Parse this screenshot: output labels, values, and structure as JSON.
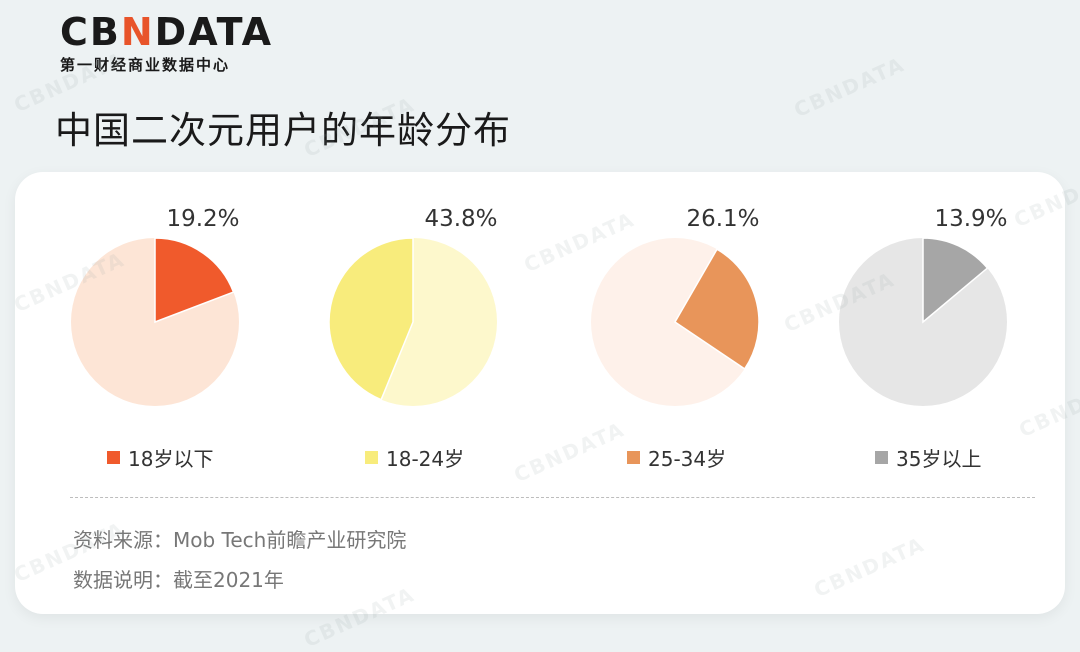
{
  "brand": {
    "logo_left": "CB",
    "logo_accent": "N",
    "logo_right": "DATA",
    "subtitle": "第一财经商业数据中心",
    "accent_color": "#e8542a"
  },
  "watermark_text": "CBNDATA",
  "title": "中国二次元用户的年龄分布",
  "chart_data": {
    "type": "pie",
    "title": "中国二次元用户的年龄分布",
    "charts": [
      {
        "category": "18岁以下",
        "value": 19.2,
        "label": "19.2%",
        "color": "#f05a2c",
        "rest_color": "#fde5d6"
      },
      {
        "category": "18-24岁",
        "value": 43.8,
        "label": "43.8%",
        "color": "#f8ec7c",
        "rest_color": "#fdf8cc"
      },
      {
        "category": "25-34岁",
        "value": 26.1,
        "label": "26.1%",
        "color": "#e8955a",
        "rest_color": "#fef1ea"
      },
      {
        "category": "35岁以上",
        "value": 13.9,
        "label": "13.9%",
        "color": "#a6a6a6",
        "rest_color": "#e6e6e6"
      }
    ]
  },
  "notes": {
    "source": "资料来源：Mob Tech前瞻产业研究院",
    "description": "数据说明：截至2021年"
  }
}
